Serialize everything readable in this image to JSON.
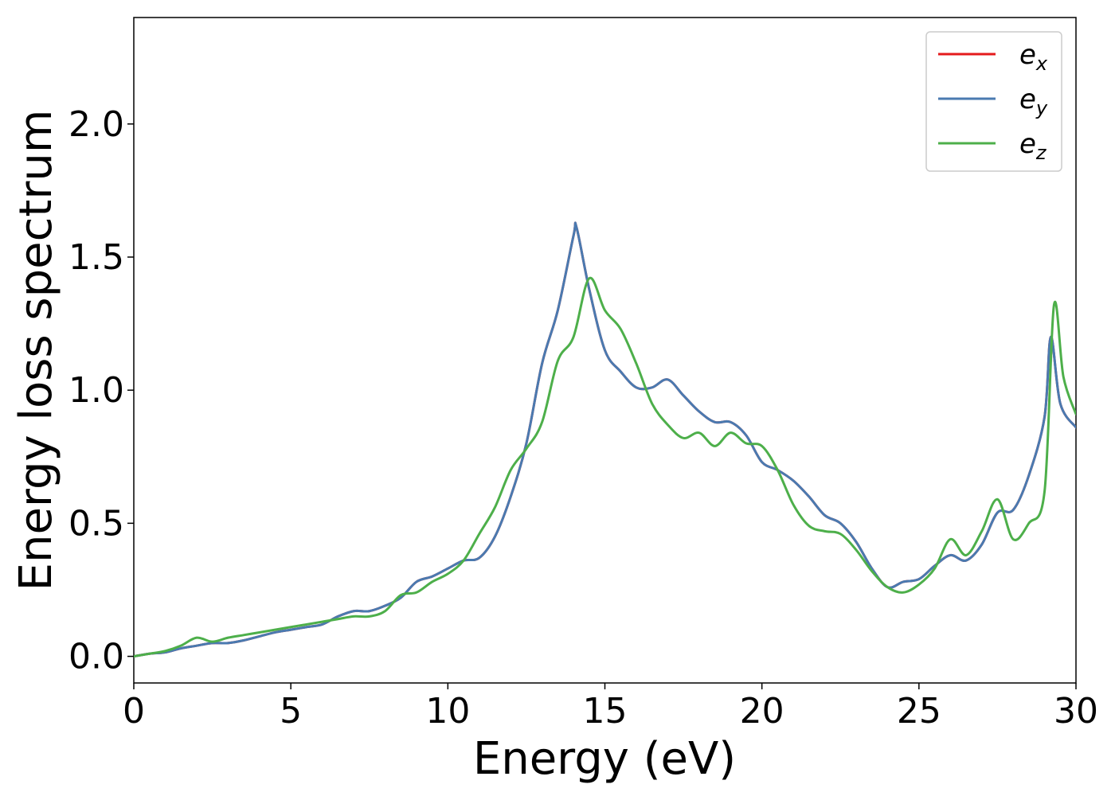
{
  "chart_data": {
    "type": "line",
    "title": "",
    "xlabel": "Energy (eV)",
    "ylabel": "Energy loss spectrum",
    "xlim": [
      0,
      30
    ],
    "ylim": [
      -0.1,
      2.4
    ],
    "xticks": [
      0,
      5,
      10,
      15,
      20,
      25,
      30
    ],
    "xtick_labels": [
      "0",
      "5",
      "10",
      "15",
      "20",
      "25",
      "30"
    ],
    "yticks": [
      0.0,
      0.5,
      1.0,
      1.5,
      2.0
    ],
    "ytick_labels": [
      "0.0",
      "0.5",
      "1.0",
      "1.5",
      "2.0"
    ],
    "grid": false,
    "legend_position": "top-right",
    "series": [
      {
        "name": "e",
        "sub": "x",
        "color": "#e41a1c",
        "x": [
          0,
          0.5,
          1,
          1.5,
          2,
          2.5,
          3,
          3.5,
          4,
          4.5,
          5,
          5.5,
          6,
          6.5,
          7,
          7.5,
          8,
          8.5,
          9,
          9.5,
          10,
          10.5,
          11,
          11.5,
          12,
          12.5,
          13,
          13.5,
          14,
          14.1,
          14.5,
          15,
          15.5,
          16,
          16.5,
          17,
          17.5,
          18,
          18.5,
          19,
          19.5,
          20,
          20.5,
          21,
          21.5,
          22,
          22.5,
          23,
          23.5,
          24,
          24.5,
          25,
          25.5,
          26,
          26.5,
          27,
          27.5,
          28,
          28.5,
          29,
          29.2,
          29.5,
          30
        ],
        "y": [
          0.0,
          0.01,
          0.015,
          0.03,
          0.04,
          0.05,
          0.05,
          0.06,
          0.075,
          0.09,
          0.1,
          0.11,
          0.12,
          0.15,
          0.17,
          0.17,
          0.19,
          0.22,
          0.28,
          0.3,
          0.33,
          0.36,
          0.37,
          0.45,
          0.6,
          0.8,
          1.1,
          1.3,
          1.58,
          1.61,
          1.38,
          1.15,
          1.07,
          1.01,
          1.01,
          1.04,
          0.98,
          0.92,
          0.88,
          0.88,
          0.83,
          0.73,
          0.7,
          0.66,
          0.6,
          0.53,
          0.5,
          0.43,
          0.33,
          0.26,
          0.28,
          0.29,
          0.34,
          0.38,
          0.36,
          0.42,
          0.54,
          0.55,
          0.68,
          0.9,
          1.2,
          0.95,
          0.86
        ]
      },
      {
        "name": "e",
        "sub": "y",
        "color": "#4a7ab0",
        "x": [
          0,
          0.5,
          1,
          1.5,
          2,
          2.5,
          3,
          3.5,
          4,
          4.5,
          5,
          5.5,
          6,
          6.5,
          7,
          7.5,
          8,
          8.5,
          9,
          9.5,
          10,
          10.5,
          11,
          11.5,
          12,
          12.5,
          13,
          13.5,
          14,
          14.1,
          14.5,
          15,
          15.5,
          16,
          16.5,
          17,
          17.5,
          18,
          18.5,
          19,
          19.5,
          20,
          20.5,
          21,
          21.5,
          22,
          22.5,
          23,
          23.5,
          24,
          24.5,
          25,
          25.5,
          26,
          26.5,
          27,
          27.5,
          28,
          28.5,
          29,
          29.2,
          29.5,
          30
        ],
        "y": [
          0.0,
          0.01,
          0.015,
          0.03,
          0.04,
          0.05,
          0.05,
          0.06,
          0.075,
          0.09,
          0.1,
          0.11,
          0.12,
          0.15,
          0.17,
          0.17,
          0.19,
          0.22,
          0.28,
          0.3,
          0.33,
          0.36,
          0.37,
          0.45,
          0.6,
          0.8,
          1.1,
          1.3,
          1.58,
          1.61,
          1.38,
          1.15,
          1.07,
          1.01,
          1.01,
          1.04,
          0.98,
          0.92,
          0.88,
          0.88,
          0.83,
          0.73,
          0.7,
          0.66,
          0.6,
          0.53,
          0.5,
          0.43,
          0.33,
          0.26,
          0.28,
          0.29,
          0.34,
          0.38,
          0.36,
          0.42,
          0.54,
          0.55,
          0.68,
          0.9,
          1.2,
          0.95,
          0.86
        ]
      },
      {
        "name": "e",
        "sub": "z",
        "color": "#4daf4a",
        "x": [
          0,
          0.5,
          1,
          1.5,
          2,
          2.5,
          3,
          3.5,
          4,
          4.5,
          5,
          5.5,
          6,
          6.5,
          7,
          7.5,
          8,
          8.5,
          9,
          9.5,
          10,
          10.5,
          11,
          11.5,
          12,
          12.5,
          13,
          13.5,
          14,
          14.5,
          15,
          15.5,
          16,
          16.5,
          17,
          17.5,
          18,
          18.5,
          19,
          19.5,
          20,
          20.5,
          21,
          21.5,
          22,
          22.5,
          23,
          23.5,
          24,
          24.5,
          25,
          25.5,
          26,
          26.5,
          27,
          27.5,
          28,
          28.5,
          29,
          29.3,
          29.6,
          30
        ],
        "y": [
          0.0,
          0.01,
          0.02,
          0.04,
          0.07,
          0.055,
          0.07,
          0.08,
          0.09,
          0.1,
          0.11,
          0.12,
          0.13,
          0.14,
          0.15,
          0.15,
          0.17,
          0.23,
          0.24,
          0.28,
          0.31,
          0.36,
          0.46,
          0.56,
          0.7,
          0.78,
          0.88,
          1.11,
          1.2,
          1.42,
          1.3,
          1.23,
          1.1,
          0.95,
          0.87,
          0.82,
          0.84,
          0.79,
          0.84,
          0.8,
          0.79,
          0.7,
          0.57,
          0.49,
          0.47,
          0.46,
          0.4,
          0.32,
          0.26,
          0.24,
          0.27,
          0.33,
          0.44,
          0.38,
          0.47,
          0.59,
          0.44,
          0.5,
          0.62,
          1.32,
          1.05,
          0.91
        ]
      }
    ]
  }
}
